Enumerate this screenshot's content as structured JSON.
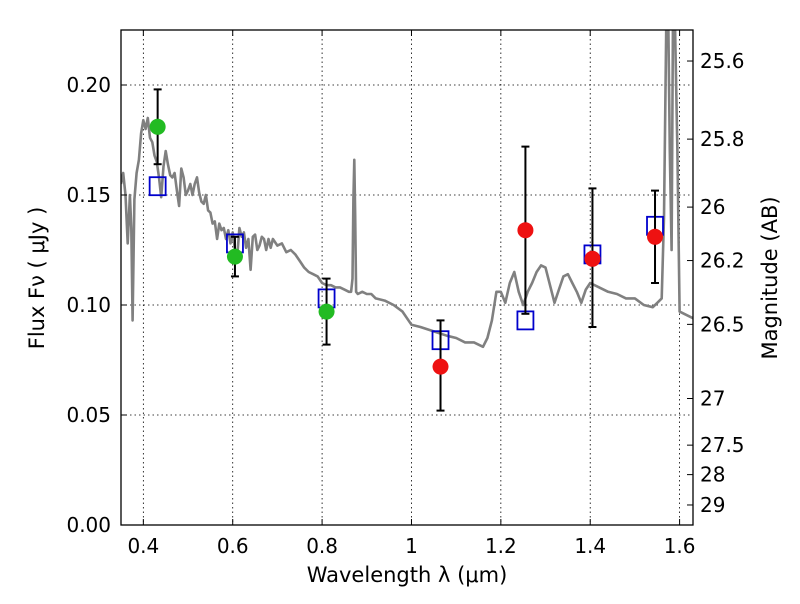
{
  "chart_data": {
    "type": "scatter",
    "title": "",
    "xlabel": "Wavelength  λ (μm)",
    "ylabel": "Flux  Fν  ( μJy )",
    "y2label": "Magnitude (AB)",
    "xlim": [
      0.35,
      1.63
    ],
    "ylim": [
      0.0,
      0.225
    ],
    "grid": true,
    "xticks": [
      {
        "value": 0.4,
        "label": "0.4"
      },
      {
        "value": 0.6,
        "label": "0.6"
      },
      {
        "value": 0.8,
        "label": "0.8"
      },
      {
        "value": 1.0,
        "label": "1"
      },
      {
        "value": 1.2,
        "label": "1.2"
      },
      {
        "value": 1.4,
        "label": "1.4"
      },
      {
        "value": 1.6,
        "label": "1.6"
      }
    ],
    "yticks": [
      {
        "value": 0.0,
        "label": "0.00"
      },
      {
        "value": 0.05,
        "label": "0.05"
      },
      {
        "value": 0.1,
        "label": "0.10"
      },
      {
        "value": 0.15,
        "label": "0.15"
      },
      {
        "value": 0.2,
        "label": "0.20"
      }
    ],
    "y2ticks": [
      {
        "flux": 0.2109,
        "label": "25.6"
      },
      {
        "flux": 0.1754,
        "label": "25.8"
      },
      {
        "flux": 0.1445,
        "label": "26"
      },
      {
        "flux": 0.1202,
        "label": "26.2"
      },
      {
        "flux": 0.0912,
        "label": "26.5"
      },
      {
        "flux": 0.0575,
        "label": "27"
      },
      {
        "flux": 0.0363,
        "label": "27.5"
      },
      {
        "flux": 0.0229,
        "label": "28"
      },
      {
        "flux": 0.0091,
        "label": "29"
      }
    ],
    "series": [
      {
        "kind": "line",
        "color": "#808080",
        "points": [
          [
            0.35,
            0.155
          ],
          [
            0.355,
            0.16
          ],
          [
            0.36,
            0.15
          ],
          [
            0.365,
            0.128
          ],
          [
            0.37,
            0.15
          ],
          [
            0.373,
            0.135
          ],
          [
            0.376,
            0.093
          ],
          [
            0.38,
            0.148
          ],
          [
            0.385,
            0.16
          ],
          [
            0.39,
            0.166
          ],
          [
            0.395,
            0.178
          ],
          [
            0.4,
            0.184
          ],
          [
            0.405,
            0.18
          ],
          [
            0.41,
            0.185
          ],
          [
            0.415,
            0.176
          ],
          [
            0.42,
            0.174
          ],
          [
            0.425,
            0.168
          ],
          [
            0.43,
            0.165
          ],
          [
            0.435,
            0.158
          ],
          [
            0.44,
            0.149
          ],
          [
            0.445,
            0.163
          ],
          [
            0.45,
            0.17
          ],
          [
            0.455,
            0.164
          ],
          [
            0.46,
            0.159
          ],
          [
            0.465,
            0.158
          ],
          [
            0.47,
            0.16
          ],
          [
            0.475,
            0.152
          ],
          [
            0.48,
            0.145
          ],
          [
            0.485,
            0.162
          ],
          [
            0.49,
            0.158
          ],
          [
            0.495,
            0.15
          ],
          [
            0.5,
            0.152
          ],
          [
            0.505,
            0.155
          ],
          [
            0.51,
            0.15
          ],
          [
            0.515,
            0.155
          ],
          [
            0.52,
            0.158
          ],
          [
            0.525,
            0.151
          ],
          [
            0.53,
            0.147
          ],
          [
            0.535,
            0.146
          ],
          [
            0.54,
            0.15
          ],
          [
            0.545,
            0.143
          ],
          [
            0.55,
            0.142
          ],
          [
            0.555,
            0.137
          ],
          [
            0.56,
            0.138
          ],
          [
            0.565,
            0.13
          ],
          [
            0.57,
            0.137
          ],
          [
            0.575,
            0.134
          ],
          [
            0.58,
            0.135
          ],
          [
            0.585,
            0.13
          ],
          [
            0.59,
            0.134
          ],
          [
            0.595,
            0.128
          ],
          [
            0.6,
            0.133
          ],
          [
            0.605,
            0.125
          ],
          [
            0.61,
            0.122
          ],
          [
            0.615,
            0.135
          ],
          [
            0.62,
            0.131
          ],
          [
            0.625,
            0.133
          ],
          [
            0.63,
            0.126
          ],
          [
            0.635,
            0.13
          ],
          [
            0.64,
            0.116
          ],
          [
            0.645,
            0.131
          ],
          [
            0.65,
            0.132
          ],
          [
            0.655,
            0.125
          ],
          [
            0.66,
            0.127
          ],
          [
            0.665,
            0.131
          ],
          [
            0.67,
            0.13
          ],
          [
            0.675,
            0.125
          ],
          [
            0.68,
            0.13
          ],
          [
            0.685,
            0.126
          ],
          [
            0.69,
            0.13
          ],
          [
            0.7,
            0.127
          ],
          [
            0.71,
            0.128
          ],
          [
            0.72,
            0.124
          ],
          [
            0.73,
            0.125
          ],
          [
            0.74,
            0.123
          ],
          [
            0.75,
            0.12
          ],
          [
            0.76,
            0.117
          ],
          [
            0.77,
            0.115
          ],
          [
            0.78,
            0.114
          ],
          [
            0.79,
            0.113
          ],
          [
            0.8,
            0.11
          ],
          [
            0.81,
            0.109
          ],
          [
            0.82,
            0.109
          ],
          [
            0.83,
            0.108
          ],
          [
            0.84,
            0.108
          ],
          [
            0.85,
            0.107
          ],
          [
            0.86,
            0.106
          ],
          [
            0.865,
            0.106
          ],
          [
            0.868,
            0.112
          ],
          [
            0.87,
            0.148
          ],
          [
            0.872,
            0.166
          ],
          [
            0.874,
            0.14
          ],
          [
            0.876,
            0.106
          ],
          [
            0.88,
            0.105
          ],
          [
            0.89,
            0.106
          ],
          [
            0.9,
            0.105
          ],
          [
            0.91,
            0.105
          ],
          [
            0.92,
            0.103
          ],
          [
            0.94,
            0.102
          ],
          [
            0.96,
            0.1
          ],
          [
            0.98,
            0.097
          ],
          [
            1.0,
            0.091
          ],
          [
            1.02,
            0.09
          ],
          [
            1.05,
            0.088
          ],
          [
            1.08,
            0.086
          ],
          [
            1.1,
            0.085
          ],
          [
            1.12,
            0.083
          ],
          [
            1.14,
            0.083
          ],
          [
            1.16,
            0.081
          ],
          [
            1.17,
            0.085
          ],
          [
            1.18,
            0.093
          ],
          [
            1.19,
            0.106
          ],
          [
            1.2,
            0.106
          ],
          [
            1.21,
            0.101
          ],
          [
            1.22,
            0.11
          ],
          [
            1.23,
            0.115
          ],
          [
            1.24,
            0.106
          ],
          [
            1.25,
            0.1
          ],
          [
            1.26,
            0.106
          ],
          [
            1.27,
            0.11
          ],
          [
            1.28,
            0.115
          ],
          [
            1.29,
            0.118
          ],
          [
            1.3,
            0.117
          ],
          [
            1.31,
            0.109
          ],
          [
            1.32,
            0.101
          ],
          [
            1.33,
            0.107
          ],
          [
            1.34,
            0.113
          ],
          [
            1.35,
            0.114
          ],
          [
            1.36,
            0.11
          ],
          [
            1.37,
            0.106
          ],
          [
            1.38,
            0.101
          ],
          [
            1.39,
            0.107
          ],
          [
            1.4,
            0.11
          ],
          [
            1.42,
            0.108
          ],
          [
            1.44,
            0.106
          ],
          [
            1.46,
            0.105
          ],
          [
            1.48,
            0.103
          ],
          [
            1.5,
            0.103
          ],
          [
            1.52,
            0.1
          ],
          [
            1.54,
            0.099
          ],
          [
            1.55,
            0.101
          ],
          [
            1.56,
            0.103
          ],
          [
            1.565,
            0.14
          ],
          [
            1.57,
            0.225
          ],
          [
            1.575,
            0.225
          ],
          [
            1.578,
            0.17
          ],
          [
            1.582,
            0.125
          ],
          [
            1.585,
            0.225
          ],
          [
            1.59,
            0.225
          ],
          [
            1.595,
            0.17
          ],
          [
            1.6,
            0.097
          ],
          [
            1.61,
            0.096
          ],
          [
            1.63,
            0.094
          ]
        ]
      },
      {
        "kind": "markers",
        "marker": "square",
        "color": "#0000cc",
        "points": [
          [
            0.432,
            0.154
          ],
          [
            0.605,
            0.128
          ],
          [
            0.81,
            0.103
          ],
          [
            1.065,
            0.084
          ],
          [
            1.255,
            0.093
          ],
          [
            1.405,
            0.123
          ],
          [
            1.545,
            0.136
          ]
        ]
      },
      {
        "kind": "markers",
        "marker": "circle",
        "color": "#22bb22",
        "points": [
          {
            "x": 0.432,
            "y": 0.181,
            "err_low": 0.164,
            "err_high": 0.198
          },
          {
            "x": 0.605,
            "y": 0.122,
            "err_low": 0.113,
            "err_high": 0.131
          },
          {
            "x": 0.81,
            "y": 0.097,
            "err_low": 0.082,
            "err_high": 0.112
          }
        ]
      },
      {
        "kind": "markers",
        "marker": "circle",
        "color": "#ee1111",
        "points": [
          {
            "x": 1.065,
            "y": 0.072,
            "err_low": 0.052,
            "err_high": 0.093
          },
          {
            "x": 1.255,
            "y": 0.134,
            "err_low": 0.096,
            "err_high": 0.172
          },
          {
            "x": 1.405,
            "y": 0.121,
            "err_low": 0.09,
            "err_high": 0.153
          },
          {
            "x": 1.545,
            "y": 0.131,
            "err_low": 0.11,
            "err_high": 0.152
          }
        ]
      }
    ]
  }
}
